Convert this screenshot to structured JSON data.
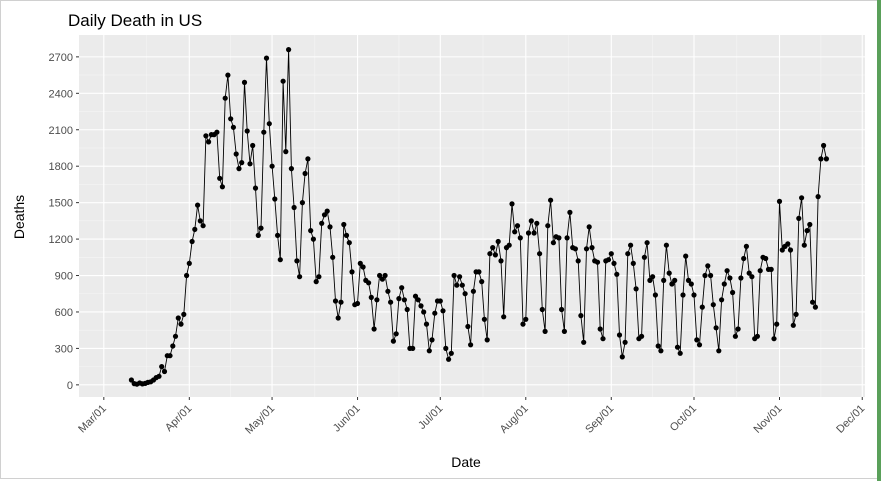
{
  "chart_data": {
    "type": "line",
    "title": "Daily Death in US",
    "xlabel": "Date",
    "ylabel": "Deaths",
    "y_ticks": [
      0,
      300,
      600,
      900,
      1200,
      1500,
      1800,
      2100,
      2400,
      2700
    ],
    "y_tick_labels": [
      "0",
      "300",
      "600",
      "900",
      "1200",
      "1500",
      "1800",
      "2100",
      "2400",
      "2700"
    ],
    "x_ticks": [
      "Mar/01",
      "Apr/01",
      "May/01",
      "Jun/01",
      "Jul/01",
      "Aug/01",
      "Sep/01",
      "Oct/01",
      "Nov/01",
      "Dec/01"
    ],
    "x_tick_labels": [
      "Mar/01",
      "Apr/01",
      "May/01",
      "Jun/01",
      "Jul/01",
      "Aug/01",
      "Sep/01",
      "Oct/01",
      "Nov/01",
      "Dec/01"
    ],
    "x_start": "2020-03-11",
    "ylim": [
      -100,
      2880
    ],
    "xlim": [
      "2020-02-21",
      "2020-12-02"
    ],
    "grid": true,
    "colors": {
      "panel": "#ebebeb",
      "grid": "#ffffff",
      "line": "#000000",
      "text": "#4d4d4d"
    },
    "values": [
      40,
      10,
      5,
      15,
      8,
      12,
      20,
      25,
      40,
      60,
      70,
      150,
      110,
      240,
      240,
      320,
      400,
      550,
      500,
      580,
      900,
      1000,
      1180,
      1280,
      1480,
      1350,
      1310,
      2050,
      2000,
      2060,
      2060,
      2080,
      1700,
      1630,
      2360,
      2550,
      2190,
      2120,
      1900,
      1780,
      1830,
      2490,
      2090,
      1820,
      1970,
      1620,
      1230,
      1290,
      2080,
      2690,
      2150,
      1800,
      1530,
      1230,
      1030,
      2500,
      1920,
      2760,
      1780,
      1460,
      1020,
      890,
      1500,
      1740,
      1860,
      1270,
      1200,
      850,
      890,
      1330,
      1400,
      1430,
      1300,
      1050,
      690,
      550,
      680,
      1320,
      1230,
      1170,
      930,
      660,
      670,
      1000,
      970,
      860,
      840,
      720,
      460,
      700,
      900,
      870,
      900,
      770,
      680,
      360,
      420,
      710,
      800,
      700,
      620,
      300,
      300,
      730,
      700,
      650,
      600,
      500,
      280,
      370,
      590,
      690,
      690,
      610,
      300,
      210,
      260,
      900,
      820,
      890,
      820,
      750,
      480,
      330,
      770,
      930,
      930,
      850,
      540,
      370,
      1080,
      1130,
      1070,
      1180,
      1020,
      560,
      1130,
      1150,
      1490,
      1260,
      1310,
      1210,
      500,
      540,
      1250,
      1350,
      1250,
      1330,
      1080,
      620,
      440,
      1310,
      1520,
      1170,
      1220,
      1210,
      620,
      440,
      1210,
      1420,
      1130,
      1120,
      1020,
      570,
      350,
      1120,
      1300,
      1130,
      1020,
      1010,
      460,
      380,
      1020,
      1030,
      1080,
      1000,
      910,
      410,
      230,
      350,
      1080,
      1150,
      1000,
      790,
      380,
      400,
      1050,
      1170,
      860,
      890,
      740,
      320,
      280,
      860,
      1150,
      920,
      830,
      860,
      310,
      260,
      740,
      1060,
      860,
      830,
      740,
      370,
      330,
      640,
      900,
      980,
      900,
      660,
      470,
      280,
      700,
      830,
      940,
      880,
      760,
      400,
      460,
      880,
      1040,
      1140,
      920,
      890,
      380,
      400,
      940,
      1050,
      1040,
      950,
      950,
      380,
      500,
      1510,
      1110,
      1140,
      1160,
      1110,
      490,
      580,
      1370,
      1540,
      1150,
      1270,
      1320,
      680,
      640,
      1550,
      1860,
      1970,
      1860
    ]
  }
}
